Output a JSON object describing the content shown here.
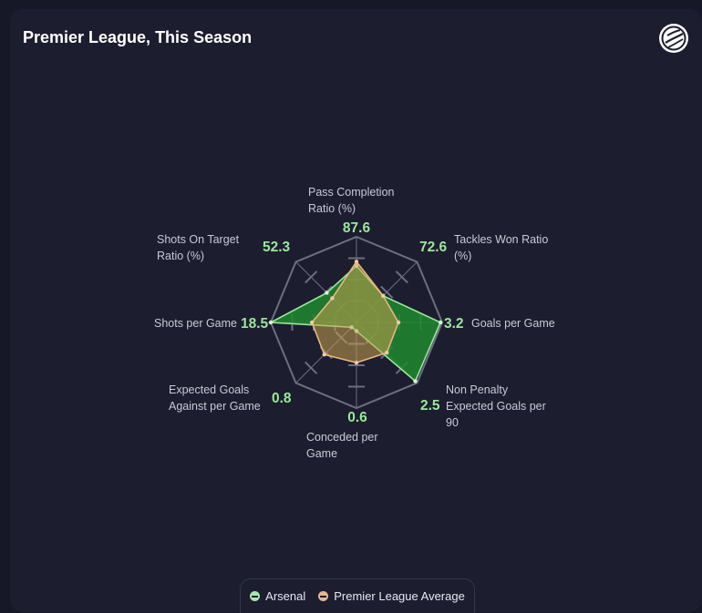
{
  "title": "Premier League, This Season",
  "logo_icon": "football-logo-icon",
  "colors": {
    "arsenal_fill": "#1e8a2e",
    "arsenal_stroke": "#9be89a",
    "average_fill": "#c9a050",
    "average_stroke": "#e7b680",
    "grid": "#6c6e82",
    "label": "#c9cad6",
    "value": "#9be89a"
  },
  "legend": {
    "items": [
      {
        "label": "Arsenal",
        "color": "#a6e6b2"
      },
      {
        "label": "Premier League Average",
        "color": "#e8b58e"
      }
    ]
  },
  "chart_data": {
    "type": "radar",
    "axes": [
      {
        "label_lines": [
          "Pass Completion",
          "Ratio (%)"
        ],
        "value_label": "87.6"
      },
      {
        "label_lines": [
          "Tackles Won Ratio",
          "(%)"
        ],
        "value_label": "72.6"
      },
      {
        "label_lines": [
          "Goals per Game"
        ],
        "value_label": "3.2"
      },
      {
        "label_lines": [
          "Non Penalty",
          "Expected Goals per",
          "90"
        ],
        "value_label": "2.5"
      },
      {
        "label_lines": [
          "Conceded per",
          "Game"
        ],
        "value_label": "0.6"
      },
      {
        "label_lines": [
          "Expected Goals",
          "Against per Game"
        ],
        "value_label": "0.8"
      },
      {
        "label_lines": [
          "Shots per Game"
        ],
        "value_label": "18.5"
      },
      {
        "label_lines": [
          "Shots On Target",
          "Ratio (%)"
        ],
        "value_label": "52.3"
      }
    ],
    "grid_levels": 4,
    "series": [
      {
        "name": "Arsenal",
        "values": [
          0.66,
          0.44,
          0.98,
          0.97,
          0.1,
          0.08,
          1.0,
          0.49
        ]
      },
      {
        "name": "Premier League Average",
        "values": [
          0.71,
          0.44,
          0.49,
          0.5,
          0.47,
          0.53,
          0.52,
          0.4
        ]
      }
    ]
  }
}
